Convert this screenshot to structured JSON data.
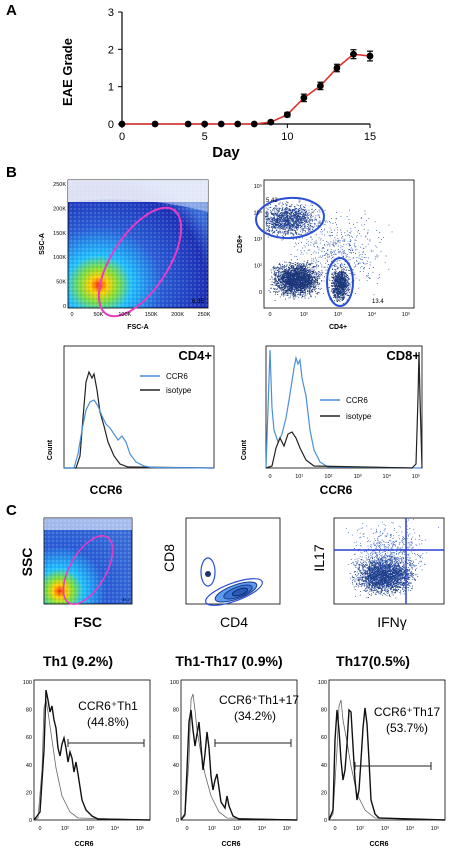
{
  "panels": {
    "a": "A",
    "b": "B",
    "c": "C"
  },
  "chart_data": [
    {
      "type": "line",
      "panel": "A",
      "xlabel": "Day",
      "ylabel": "EAE Grade",
      "xlim": [
        0,
        15
      ],
      "ylim": [
        0,
        3
      ],
      "xticks": [
        0,
        5,
        10,
        15
      ],
      "yticks": [
        0,
        1,
        2,
        3
      ],
      "color": "#e03030",
      "marker_color": "#000000",
      "x": [
        0,
        2,
        4,
        5,
        6,
        7,
        8,
        9,
        10,
        11,
        12,
        13,
        14,
        15
      ],
      "y": [
        0,
        0,
        0,
        0,
        0,
        0,
        0,
        0.05,
        0.25,
        0.7,
        1.02,
        1.5,
        1.87,
        1.82
      ],
      "err": [
        0,
        0,
        0,
        0,
        0,
        0,
        0,
        0.03,
        0.06,
        0.1,
        0.1,
        0.1,
        0.12,
        0.13
      ]
    },
    {
      "type": "scatter",
      "panel": "B",
      "plot": "density",
      "xlabel": "FSC-A",
      "ylabel": "SSC-A",
      "xticks": [
        "0",
        "50K",
        "100K",
        "150K",
        "200K",
        "250K"
      ],
      "yticks": [
        "0",
        "50K",
        "100K",
        "150K",
        "200K",
        "250K"
      ],
      "gate_pct": "6.35"
    },
    {
      "type": "scatter",
      "panel": "B",
      "plot": "dot",
      "xlabel": "CD4+",
      "ylabel": "CD8+",
      "xticks": [
        "0",
        "10²",
        "10³",
        "10⁴",
        "10⁵"
      ],
      "yticks": [
        "0",
        "10²",
        "10³",
        "10⁴",
        "10⁵"
      ],
      "gates": [
        "5.42",
        "13.4"
      ]
    },
    {
      "type": "line",
      "panel": "B",
      "plot": "histogram",
      "title": "CD4+",
      "xlabel": "CCR6",
      "ylabel": "Count",
      "series": [
        {
          "name": "CCR6",
          "color": "#4a90d9"
        },
        {
          "name": "isotype",
          "color": "#222222"
        }
      ]
    },
    {
      "type": "line",
      "panel": "B",
      "plot": "histogram",
      "title": "CD8+",
      "xlabel": "CCR6",
      "ylabel": "Count",
      "xticks": [
        "0",
        "10¹",
        "10²",
        "10³",
        "10⁴",
        "10⁵"
      ],
      "series": [
        {
          "name": "CCR6",
          "color": "#4a90d9"
        },
        {
          "name": "isotype",
          "color": "#222222"
        }
      ]
    },
    {
      "type": "scatter",
      "panel": "C",
      "plot": "density",
      "xlabel": "FSC",
      "ylabel": "SSC",
      "gate_pct": "34.2"
    },
    {
      "type": "scatter",
      "panel": "C",
      "plot": "contour",
      "xlabel": "CD4",
      "ylabel": "CD8"
    },
    {
      "type": "scatter",
      "panel": "C",
      "plot": "quadrant",
      "xlabel": "IFNγ",
      "ylabel": "IL17"
    },
    {
      "type": "line",
      "panel": "C",
      "plot": "histogram",
      "title": "Th1 (9.2%)",
      "gate_label": "CCR6⁺Th1",
      "gate_pct": "(44.8%)",
      "xlabel": "CCR6",
      "yticks": [
        "0",
        "20",
        "40",
        "60",
        "80",
        "100"
      ],
      "xticks": [
        "0",
        "10²",
        "10³",
        "10⁴",
        "10⁵"
      ]
    },
    {
      "type": "line",
      "panel": "C",
      "plot": "histogram",
      "title": "Th1-Th17 (0.9%)",
      "gate_label": "CCR6⁺Th1+17",
      "gate_pct": "(34.2%)",
      "xlabel": "CCR6",
      "yticks": [
        "0",
        "20",
        "40",
        "60",
        "80",
        "100"
      ],
      "xticks": [
        "0",
        "10²",
        "10³",
        "10⁴",
        "10⁵"
      ]
    },
    {
      "type": "line",
      "panel": "C",
      "plot": "histogram",
      "title": "Th17(0.5%)",
      "gate_label": "CCR6⁺Th17",
      "gate_pct": "(53.7%)",
      "xlabel": "CCR6",
      "yticks": [
        "0",
        "20",
        "40",
        "60",
        "80",
        "100"
      ],
      "xticks": [
        "0",
        "10²",
        "10³",
        "10⁴",
        "10⁵"
      ]
    }
  ]
}
